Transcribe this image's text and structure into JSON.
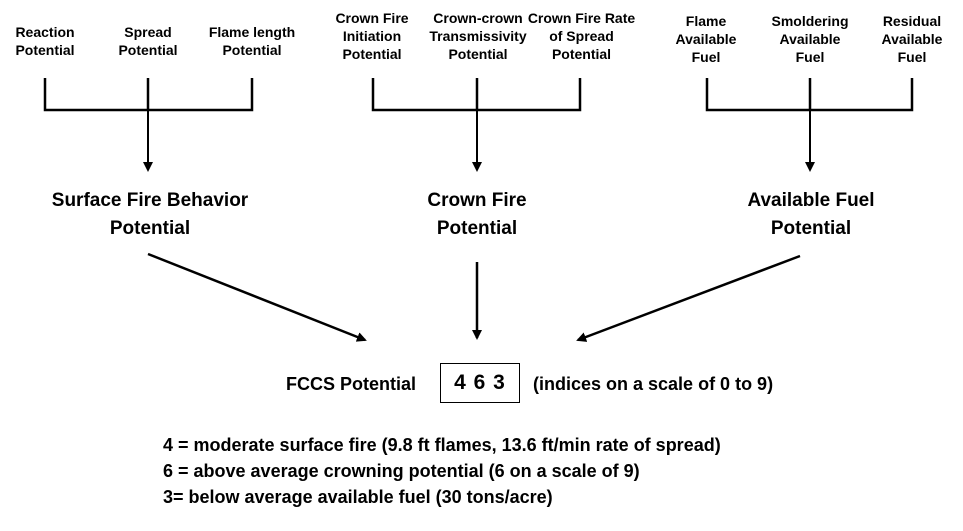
{
  "group_surface": {
    "inputs": [
      "Reaction\nPotential",
      "Spread\nPotential",
      "Flame length\nPotential"
    ],
    "output": "Surface Fire Behavior\nPotential"
  },
  "group_crown": {
    "inputs": [
      "Crown Fire\nInitiation\nPotential",
      "Crown-crown\nTransmissivity\nPotential",
      "Crown Fire Rate\nof Spread\nPotential"
    ],
    "output": "Crown Fire\nPotential"
  },
  "group_fuel": {
    "inputs": [
      "Flame\nAvailable\nFuel",
      "Smoldering\nAvailable\nFuel",
      "Residual\nAvailable\nFuel"
    ],
    "output": "Available Fuel\nPotential"
  },
  "fccs": {
    "label": "FCCS Potential",
    "value": "4 6 3",
    "scale_note": "(indices on a scale of 0 to 9)"
  },
  "notes": [
    "4 = moderate surface fire (9.8 ft flames, 13.6 ft/min rate of spread)",
    "6 = above average crowning potential (6 on a scale of 9)",
    "3= below average available fuel (30 tons/acre)"
  ]
}
